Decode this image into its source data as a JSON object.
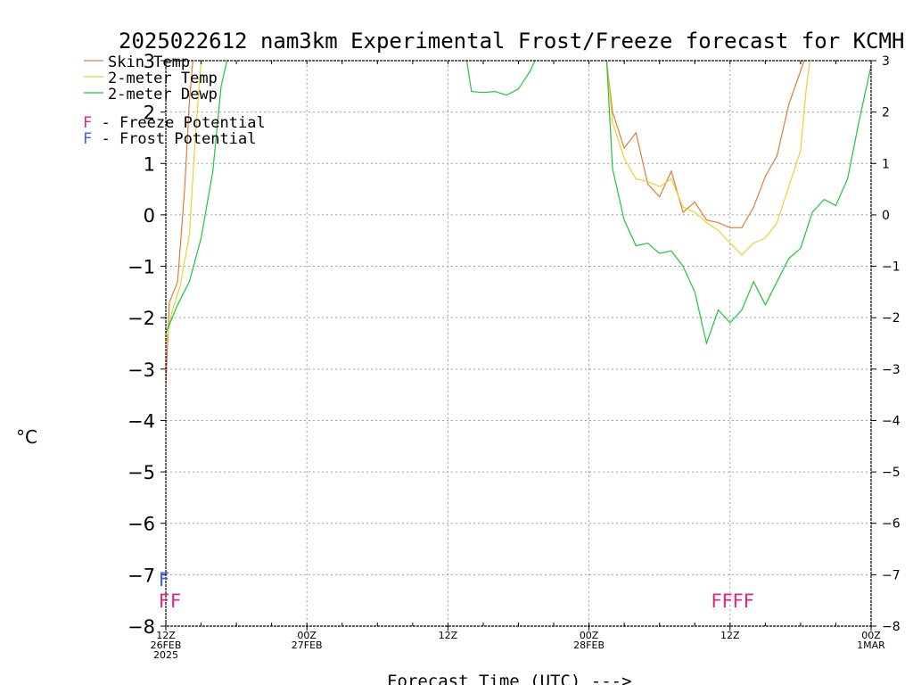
{
  "chart_data": {
    "type": "line",
    "title": "2025022612 nam3km Experimental Frost/Freeze forecast for KCMH",
    "xlabel": "Forecast Time (UTC) --->",
    "ylabel": "°C",
    "ylim": [
      -8,
      3
    ],
    "yticks": [
      3,
      2,
      1,
      0,
      -1,
      -2,
      -3,
      -4,
      -5,
      -6,
      -7,
      -8
    ],
    "xlim": [
      0,
      60
    ],
    "xtick_labels": [
      {
        "hour": 0,
        "lines": [
          "12Z",
          "26FEB",
          "2025"
        ]
      },
      {
        "hour": 12,
        "lines": [
          "00Z",
          "27FEB"
        ]
      },
      {
        "hour": 24,
        "lines": [
          "12Z"
        ]
      },
      {
        "hour": 36,
        "lines": [
          "00Z",
          "28FEB"
        ]
      },
      {
        "hour": 48,
        "lines": [
          "12Z"
        ]
      },
      {
        "hour": 60,
        "lines": [
          "00Z",
          "1MAR"
        ]
      }
    ],
    "grid": true,
    "legend_position": "top-left",
    "series": [
      {
        "name": "Skin Temp",
        "color": "#e07c3a",
        "segments": [
          [
            [
              0,
              -3.3
            ],
            [
              0.3,
              -1.7
            ],
            [
              1,
              -1.3
            ],
            [
              1.6,
              0.5
            ],
            [
              2,
              2.2
            ],
            [
              2.3,
              3.0
            ]
          ],
          [
            [
              37.5,
              3.0
            ],
            [
              38,
              2.0
            ],
            [
              39,
              1.3
            ],
            [
              40,
              1.6
            ],
            [
              41,
              0.6
            ],
            [
              42,
              0.35
            ],
            [
              43,
              0.85
            ],
            [
              44,
              0.05
            ],
            [
              45,
              0.25
            ],
            [
              46,
              -0.1
            ],
            [
              47,
              -0.15
            ],
            [
              48,
              -0.25
            ],
            [
              49,
              -0.25
            ],
            [
              50,
              0.15
            ],
            [
              51,
              0.75
            ],
            [
              52,
              1.15
            ],
            [
              53,
              2.15
            ],
            [
              54,
              2.8
            ],
            [
              54.3,
              3.0
            ]
          ]
        ]
      },
      {
        "name": "2-meter Temp",
        "color": "#ead22c",
        "segments": [
          [
            [
              0,
              -2.5
            ],
            [
              0.5,
              -1.9
            ],
            [
              1.2,
              -1.4
            ],
            [
              2,
              -0.4
            ],
            [
              2.5,
              1.5
            ],
            [
              3,
              3.0
            ]
          ],
          [
            [
              37.5,
              3.0
            ],
            [
              38,
              1.8
            ],
            [
              39,
              1.1
            ],
            [
              40,
              0.7
            ],
            [
              41,
              0.65
            ],
            [
              42,
              0.55
            ],
            [
              43,
              0.7
            ],
            [
              44,
              0.15
            ],
            [
              45,
              0.05
            ],
            [
              46,
              -0.15
            ],
            [
              47,
              -0.3
            ],
            [
              48,
              -0.55
            ],
            [
              49,
              -0.78
            ],
            [
              50,
              -0.55
            ],
            [
              51,
              -0.45
            ],
            [
              52,
              -0.15
            ],
            [
              53,
              0.55
            ],
            [
              54,
              1.25
            ],
            [
              54.5,
              2.5
            ],
            [
              54.8,
              3.0
            ]
          ]
        ]
      },
      {
        "name": "2-meter Dewp",
        "color": "#1cc63c",
        "segments": [
          [
            [
              0,
              -2.3
            ],
            [
              1,
              -1.75
            ],
            [
              2,
              -1.3
            ],
            [
              3,
              -0.45
            ],
            [
              4,
              0.85
            ],
            [
              4.7,
              2.5
            ],
            [
              5.2,
              3.0
            ]
          ],
          [
            [
              25.6,
              3.0
            ],
            [
              26,
              2.4
            ],
            [
              27,
              2.38
            ],
            [
              28,
              2.4
            ],
            [
              29,
              2.33
            ],
            [
              30,
              2.45
            ],
            [
              31,
              2.8
            ],
            [
              31.4,
              3.0
            ]
          ],
          [
            [
              37.5,
              3.0
            ],
            [
              38,
              0.9
            ],
            [
              39,
              -0.1
            ],
            [
              40,
              -0.6
            ],
            [
              41,
              -0.55
            ],
            [
              42,
              -0.75
            ],
            [
              43,
              -0.7
            ],
            [
              44,
              -1.0
            ],
            [
              45,
              -1.5
            ],
            [
              46,
              -2.5
            ],
            [
              47,
              -1.85
            ],
            [
              48,
              -2.1
            ],
            [
              49,
              -1.85
            ],
            [
              50,
              -1.3
            ],
            [
              51,
              -1.75
            ],
            [
              52,
              -1.3
            ],
            [
              53,
              -0.85
            ],
            [
              54,
              -0.65
            ],
            [
              55,
              0.05
            ],
            [
              56,
              0.3
            ],
            [
              57,
              0.18
            ],
            [
              58,
              0.7
            ],
            [
              59,
              1.85
            ],
            [
              60,
              2.9
            ]
          ]
        ]
      }
    ],
    "legend_entries": [
      {
        "text": "Skin Temp",
        "color": "#e07c3a"
      },
      {
        "text": "2-meter Temp",
        "color": "#ead22c"
      },
      {
        "text": "2-meter Dewp",
        "color": "#1cc63c"
      }
    ],
    "potential_legend": [
      {
        "marker": "F",
        "marker_color": "#e0257f",
        "text": " - Freeze Potential"
      },
      {
        "marker": "F",
        "marker_color": "#4060e0",
        "text": " - Frost Potential"
      }
    ],
    "frost_markers": [
      {
        "hour": 0,
        "text": "F",
        "color": "#4060e0"
      }
    ],
    "freeze_markers": [
      {
        "hour": 0,
        "text": "F",
        "color": "#e0257f"
      },
      {
        "hour": 1,
        "text": "F",
        "color": "#e0257f"
      },
      {
        "hour": 47,
        "text": "FFFF",
        "color": "#e0257f"
      }
    ]
  }
}
